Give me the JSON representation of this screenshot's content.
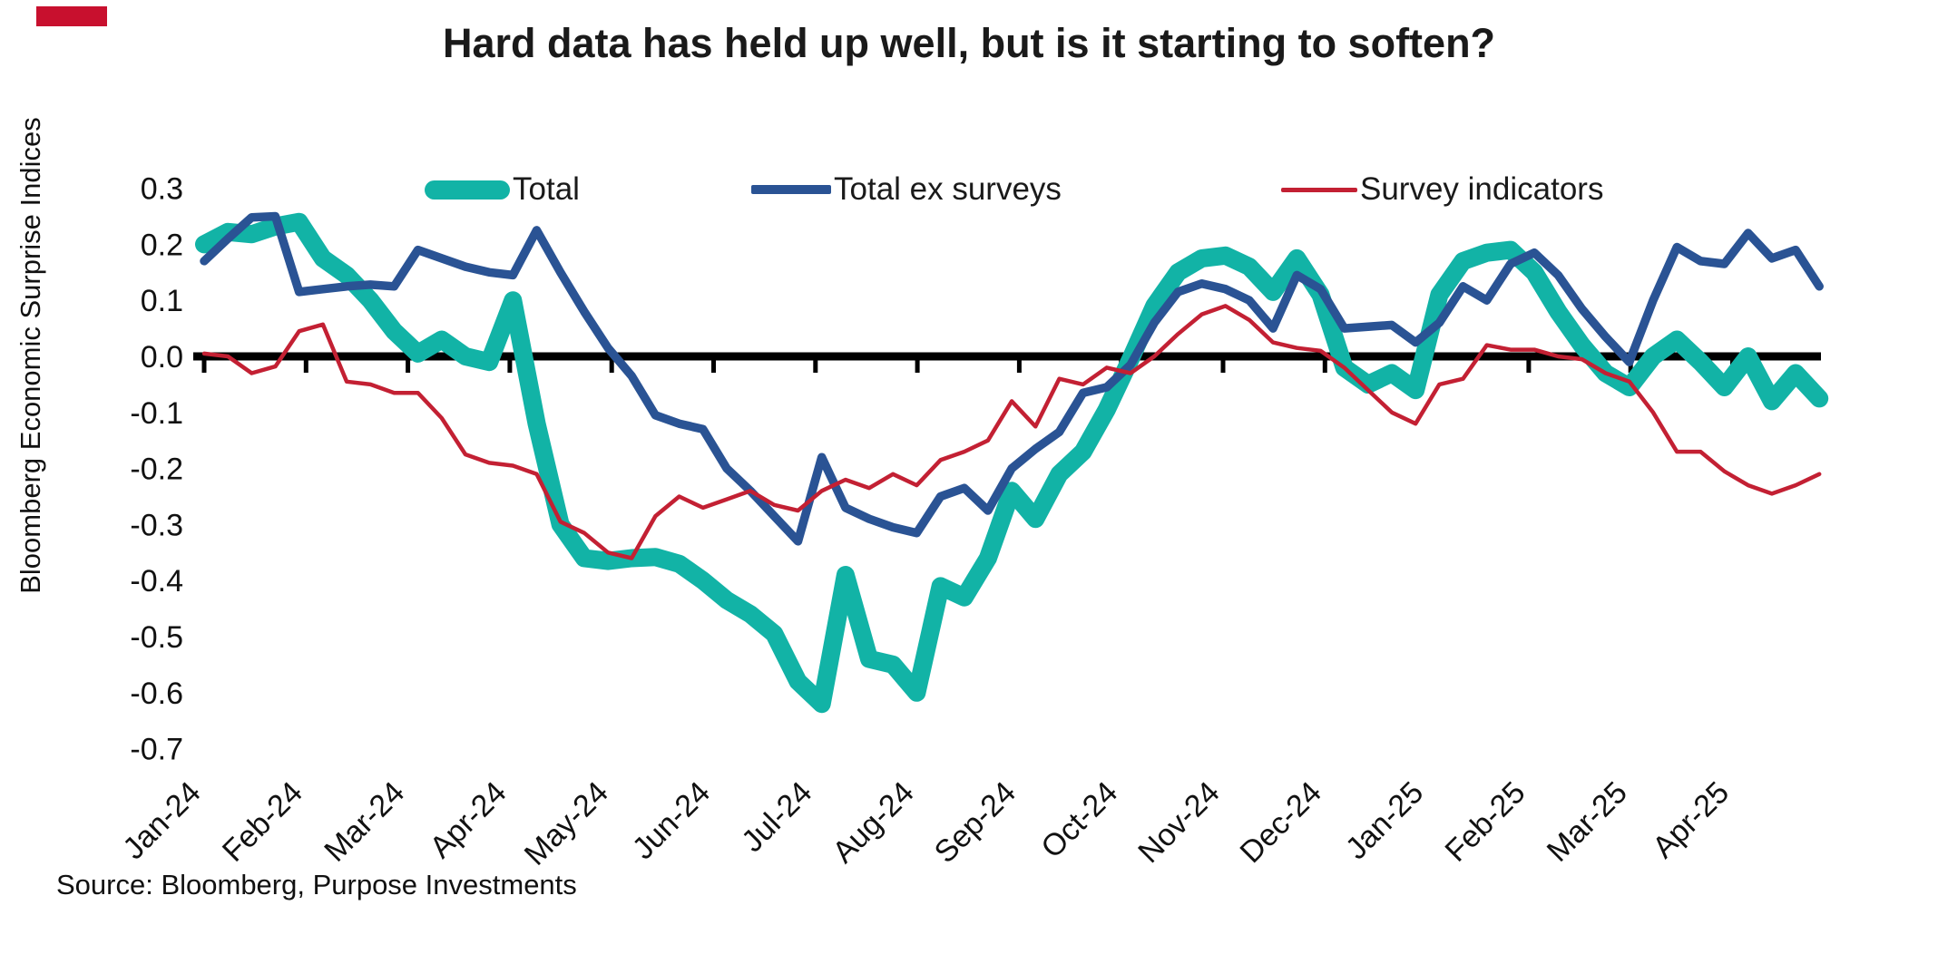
{
  "brand_mark_color": "#c8102e",
  "chart_data": {
    "type": "line",
    "title": "Hard data has held up well, but is it starting to soften?",
    "ylabel": "Bloomberg Economic Surprise Indices",
    "source": "Source: Bloomberg, Purpose Investments",
    "x_tick_labels": [
      "Jan-24",
      "Feb-24",
      "Mar-24",
      "Apr-24",
      "May-24",
      "Jun-24",
      "Jul-24",
      "Aug-24",
      "Sep-24",
      "Oct-24",
      "Nov-24",
      "Dec-24",
      "Jan-25",
      "Feb-25",
      "Mar-25",
      "Apr-25"
    ],
    "x_frequency": "weekly",
    "y_ticks": [
      0.3,
      0.2,
      0.1,
      0.0,
      -0.1,
      -0.2,
      -0.3,
      -0.4,
      -0.5,
      -0.6,
      -0.7
    ],
    "ylim": [
      -0.7,
      0.3
    ],
    "zero_line": true,
    "grid": false,
    "legend_position": "top",
    "series": [
      {
        "name": "Total",
        "color": "#12b3a6",
        "line_width": "thick",
        "values": [
          0.2,
          0.222,
          0.218,
          0.232,
          0.24,
          0.175,
          0.145,
          0.1,
          0.045,
          0.005,
          0.03,
          0.0,
          -0.01,
          0.1,
          -0.12,
          -0.3,
          -0.36,
          -0.365,
          -0.36,
          -0.358,
          -0.37,
          -0.4,
          -0.435,
          -0.46,
          -0.495,
          -0.58,
          -0.62,
          -0.39,
          -0.54,
          -0.55,
          -0.6,
          -0.41,
          -0.43,
          -0.36,
          -0.24,
          -0.29,
          -0.21,
          -0.17,
          -0.095,
          -0.005,
          0.09,
          0.15,
          0.175,
          0.18,
          0.16,
          0.115,
          0.175,
          0.11,
          -0.02,
          -0.05,
          -0.03,
          -0.06,
          0.11,
          0.17,
          0.185,
          0.19,
          0.15,
          0.08,
          0.02,
          -0.03,
          -0.055,
          0.0,
          0.03,
          -0.01,
          -0.055,
          0.0,
          -0.08,
          -0.03,
          -0.075
        ]
      },
      {
        "name": "Total ex surveys",
        "color": "#2a5394",
        "line_width": "medium",
        "values": [
          0.17,
          0.21,
          0.248,
          0.25,
          0.115,
          0.12,
          0.125,
          0.128,
          0.125,
          0.19,
          0.175,
          0.16,
          0.15,
          0.145,
          0.225,
          0.15,
          0.08,
          0.015,
          -0.035,
          -0.105,
          -0.12,
          -0.13,
          -0.2,
          -0.24,
          -0.285,
          -0.33,
          -0.18,
          -0.27,
          -0.29,
          -0.305,
          -0.315,
          -0.25,
          -0.235,
          -0.275,
          -0.2,
          -0.165,
          -0.135,
          -0.065,
          -0.055,
          -0.015,
          0.06,
          0.115,
          0.13,
          0.12,
          0.1,
          0.05,
          0.145,
          0.12,
          0.05,
          0.053,
          0.056,
          0.025,
          0.06,
          0.125,
          0.1,
          0.165,
          0.185,
          0.145,
          0.085,
          0.035,
          -0.01,
          0.1,
          0.195,
          0.17,
          0.165,
          0.22,
          0.175,
          0.19,
          0.125
        ]
      },
      {
        "name": "Survey indicators",
        "color": "#c32033",
        "line_width": "thin",
        "values": [
          0.005,
          0.0,
          -0.03,
          -0.018,
          0.045,
          0.057,
          -0.045,
          -0.05,
          -0.065,
          -0.065,
          -0.11,
          -0.175,
          -0.19,
          -0.195,
          -0.21,
          -0.295,
          -0.315,
          -0.35,
          -0.36,
          -0.285,
          -0.25,
          -0.27,
          -0.255,
          -0.24,
          -0.265,
          -0.275,
          -0.24,
          -0.22,
          -0.235,
          -0.21,
          -0.23,
          -0.185,
          -0.17,
          -0.15,
          -0.08,
          -0.125,
          -0.04,
          -0.05,
          -0.02,
          -0.03,
          0.0,
          0.04,
          0.075,
          0.09,
          0.065,
          0.025,
          0.015,
          0.01,
          -0.02,
          -0.06,
          -0.1,
          -0.12,
          -0.05,
          -0.04,
          0.02,
          0.012,
          0.012,
          0.0,
          -0.005,
          -0.03,
          -0.045,
          -0.1,
          -0.17,
          -0.17,
          -0.205,
          -0.23,
          -0.245,
          -0.23,
          -0.21
        ]
      }
    ]
  }
}
